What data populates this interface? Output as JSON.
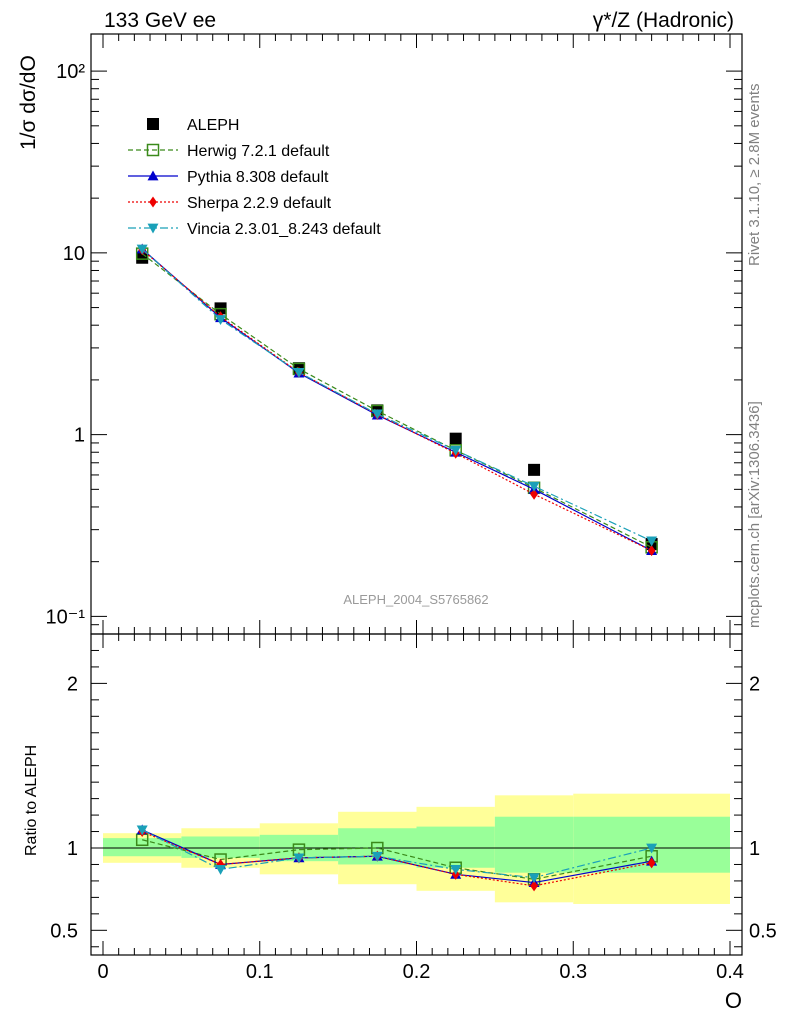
{
  "header": {
    "left": "133 GeV ee",
    "right": "γ*/Z (Hadronic)"
  },
  "side_labels": {
    "rivet": "Rivet 3.1.10, ≥ 2.8M events",
    "mcplots": "mcplots.cern.ch [arXiv:1306.3436]"
  },
  "watermark": "ALEPH_2004_S5765862",
  "xlabel": "O",
  "legend": {
    "items": [
      {
        "label": "ALEPH",
        "color": "#000000",
        "marker": "square-filled",
        "dash": ""
      },
      {
        "label": "Herwig 7.2.1 default",
        "color": "#3a8a1a",
        "marker": "square-open",
        "dash": "5,3"
      },
      {
        "label": "Pythia 8.308 default",
        "color": "#0000cc",
        "marker": "triangle-up",
        "dash": ""
      },
      {
        "label": "Sherpa 2.2.9 default",
        "color": "#ee0000",
        "marker": "diamond",
        "dash": "2,2"
      },
      {
        "label": "Vincia 2.3.01_8.243 default",
        "color": "#1aa0b8",
        "marker": "triangle-down",
        "dash": "8,3,2,3"
      }
    ]
  },
  "chart_data": [
    {
      "type": "line",
      "panel": "main",
      "ylabel": "1/σ  dσ/dO",
      "yscale": "log",
      "xlim": [
        0,
        0.4
      ],
      "ylim": [
        0.08,
        160
      ],
      "ytick_labels": [
        "10⁻¹",
        "1",
        "10",
        "10²"
      ],
      "x_edges": [
        0.0,
        0.05,
        0.1,
        0.15,
        0.2,
        0.25,
        0.3,
        0.4
      ],
      "x": [
        0.025,
        0.075,
        0.125,
        0.175,
        0.225,
        0.275,
        0.35
      ],
      "series": [
        {
          "name": "ALEPH",
          "values": [
            9.4,
            4.95,
            2.32,
            1.36,
            0.95,
            0.64,
            0.25
          ]
        },
        {
          "name": "Herwig 7.2.1 default",
          "values": [
            9.9,
            4.6,
            2.3,
            1.35,
            0.82,
            0.51,
            0.24
          ]
        },
        {
          "name": "Pythia 8.308 default",
          "values": [
            10.5,
            4.4,
            2.18,
            1.28,
            0.8,
            0.5,
            0.23
          ]
        },
        {
          "name": "Sherpa 2.2.9 default",
          "values": [
            10.4,
            4.45,
            2.2,
            1.29,
            0.79,
            0.47,
            0.23
          ]
        },
        {
          "name": "Vincia 2.3.01_8.243 default",
          "values": [
            10.5,
            4.3,
            2.2,
            1.3,
            0.82,
            0.52,
            0.26
          ]
        }
      ]
    },
    {
      "type": "line",
      "panel": "ratio",
      "ylabel": "Ratio to ALEPH",
      "xlabel": "O",
      "xlim": [
        0,
        0.4
      ],
      "ylim": [
        0.35,
        2.3
      ],
      "xtick_labels": [
        "0",
        "0.1",
        "0.2",
        "0.3",
        "0.4"
      ],
      "ytick_labels": [
        "0.5",
        "1",
        "2"
      ],
      "x_edges": [
        0.0,
        0.05,
        0.1,
        0.15,
        0.2,
        0.25,
        0.3,
        0.4
      ],
      "x": [
        0.025,
        0.075,
        0.125,
        0.175,
        0.225,
        0.275,
        0.35
      ],
      "band_inner": {
        "lo": [
          0.95,
          0.94,
          0.92,
          0.9,
          0.88,
          0.85,
          0.85
        ],
        "hi": [
          1.06,
          1.07,
          1.08,
          1.12,
          1.13,
          1.19,
          1.19
        ]
      },
      "band_outer": {
        "lo": [
          0.91,
          0.88,
          0.84,
          0.78,
          0.74,
          0.67,
          0.66
        ],
        "hi": [
          1.09,
          1.12,
          1.15,
          1.22,
          1.25,
          1.32,
          1.33
        ]
      },
      "series": [
        {
          "name": "Herwig 7.2.1 default",
          "values": [
            1.05,
            0.93,
            0.99,
            1.0,
            0.88,
            0.81,
            0.95
          ]
        },
        {
          "name": "Pythia 8.308 default",
          "values": [
            1.11,
            0.9,
            0.94,
            0.95,
            0.84,
            0.79,
            0.92
          ]
        },
        {
          "name": "Sherpa 2.2.9 default",
          "values": [
            1.1,
            0.9,
            0.94,
            0.95,
            0.84,
            0.77,
            0.91
          ]
        },
        {
          "name": "Vincia 2.3.01_8.243 default",
          "values": [
            1.11,
            0.87,
            0.94,
            0.95,
            0.87,
            0.82,
            1.0
          ]
        }
      ]
    }
  ]
}
